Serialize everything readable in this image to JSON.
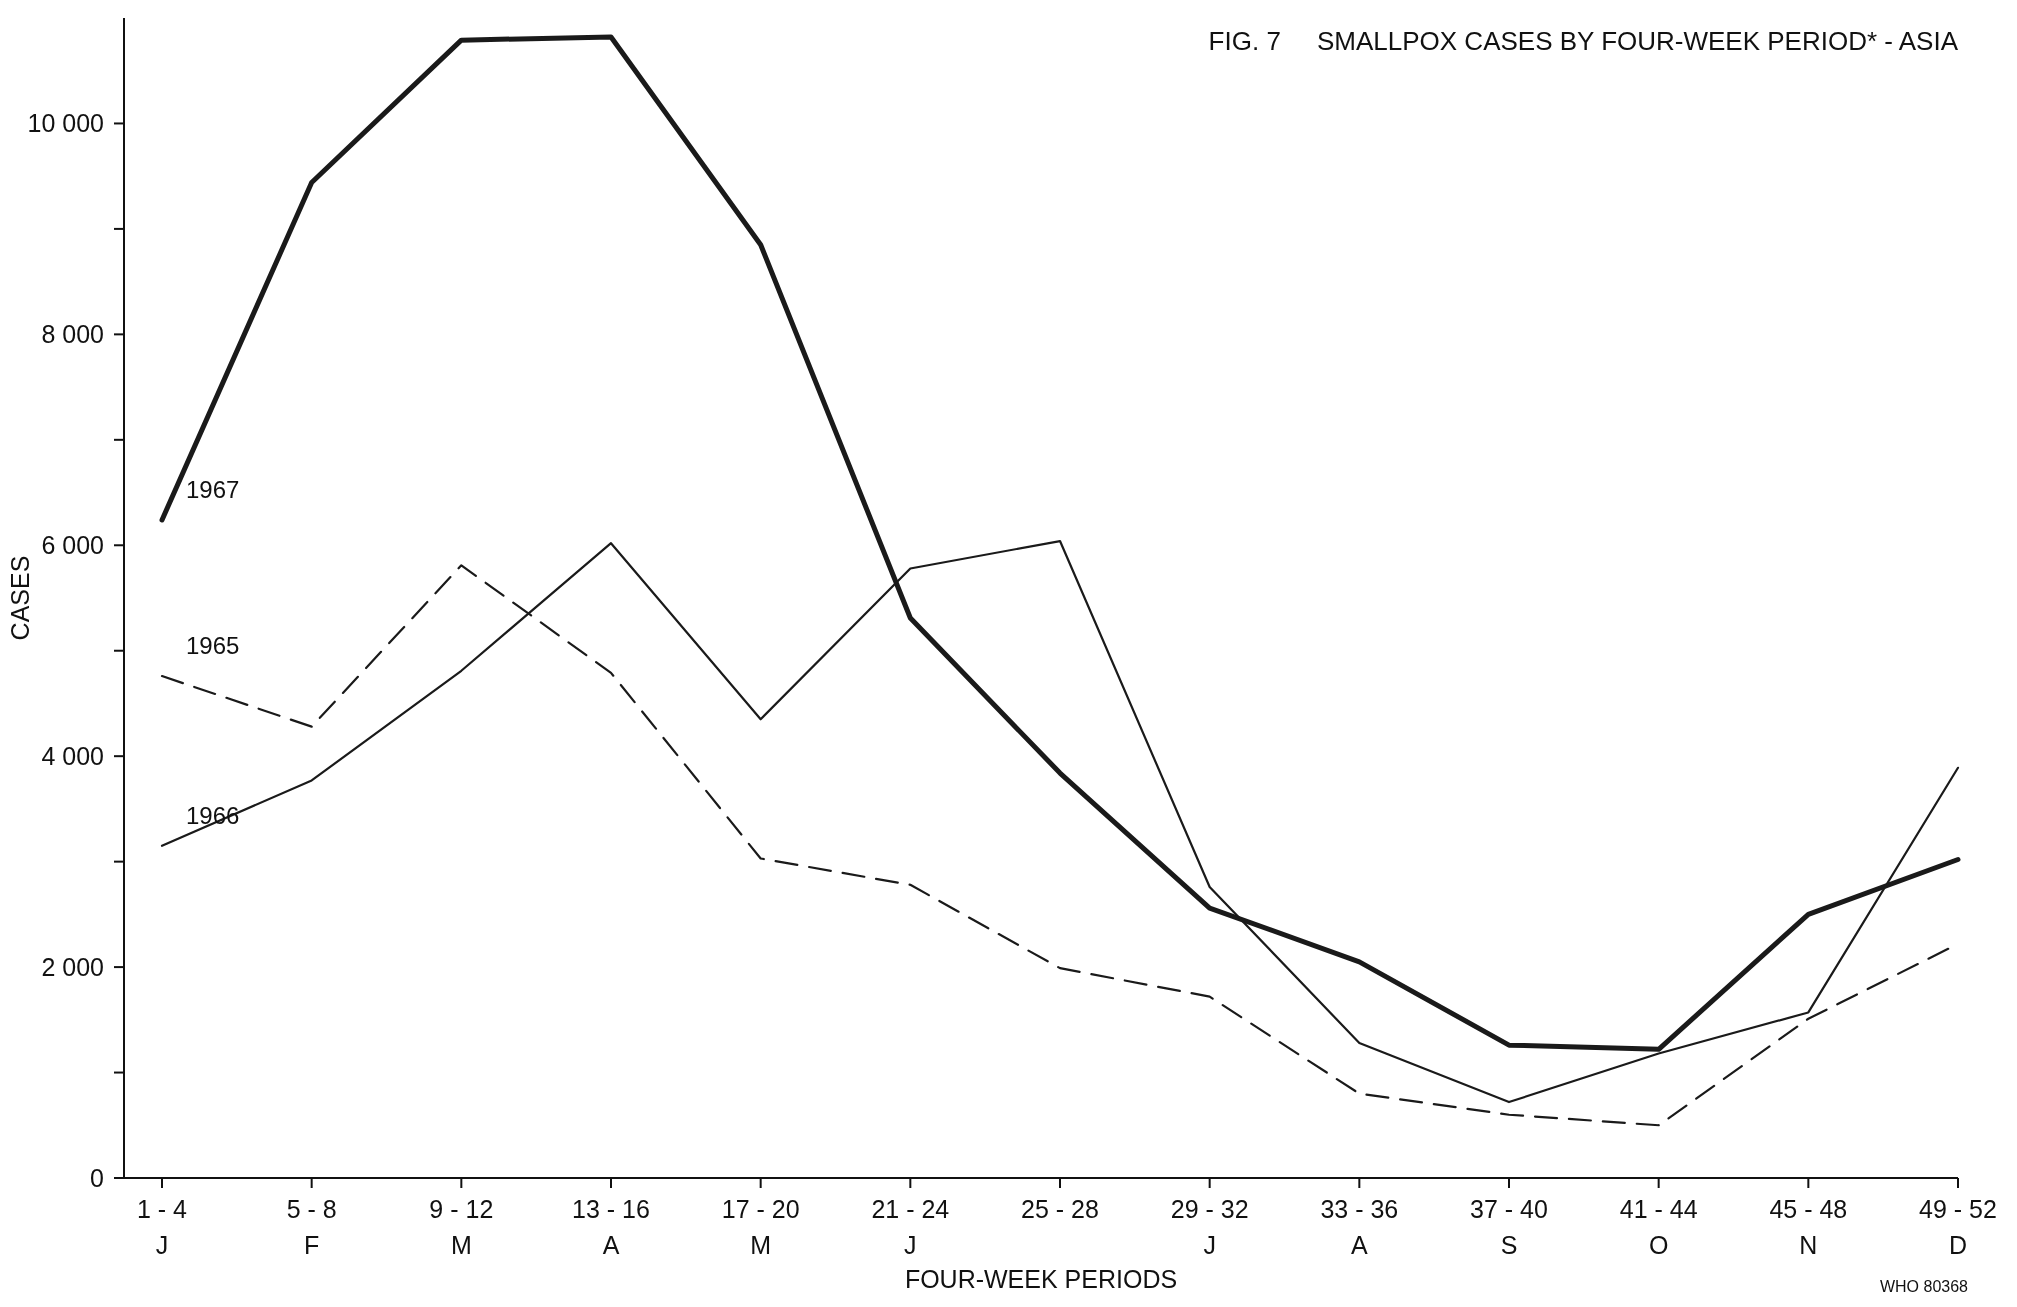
{
  "chart_data": {
    "type": "line",
    "title": "FIG. 7     SMALLPOX CASES BY FOUR-WEEK PERIOD* - ASIA",
    "xlabel": "FOUR-WEEK PERIODS",
    "ylabel": "CASES",
    "annotations": [
      "WHO 80368"
    ],
    "categories": [
      "1 - 4\nJ",
      "5 - 8\nF",
      "9 - 12\nM",
      "13 - 16\nA",
      "17 - 20\nM",
      "21 - 24\nJ",
      "25 - 28",
      "29 - 32\nJ",
      "33 - 36\nA",
      "37 - 40\nS",
      "41 - 44\nO",
      "45 - 48\nN",
      "49 - 52\nD"
    ],
    "series": [
      {
        "name": "1967",
        "color": "#1a1a1a",
        "line_style": "solid",
        "values": [
          6240,
          9440,
          10790,
          10820,
          8850,
          5310,
          3840,
          2560,
          2050,
          1260,
          1220,
          2500,
          3020
        ]
      },
      {
        "name": "1965",
        "color": "#1a1a1a",
        "line_style": "dashed",
        "values": [
          4760,
          4280,
          5810,
          4790,
          3030,
          2780,
          1990,
          1720,
          800,
          600,
          500,
          1510,
          2220
        ]
      },
      {
        "name": "1966",
        "color": "#1a1a1a",
        "line_style": "solid",
        "values": [
          3150,
          3770,
          4810,
          6020,
          4350,
          5780,
          6040,
          2760,
          1280,
          720,
          1180,
          1570,
          3890
        ]
      }
    ],
    "ylim": [
      0,
      11000
    ],
    "yticks": [
      0,
      {
        "value": 1000,
        "label": null
      },
      {
        "value": 2000,
        "label": "2 000"
      },
      {
        "value": 3000,
        "label": null
      },
      {
        "value": 4000,
        "label": "4 000"
      },
      {
        "value": 5000,
        "label": null
      },
      {
        "value": 6000,
        "label": "6 000"
      },
      {
        "value": 7000,
        "label": null
      },
      {
        "value": 8000,
        "label": "8 000"
      },
      {
        "value": 9000,
        "label": null
      },
      {
        "value": 10000,
        "label": "10 000"
      }
    ],
    "grid": false
  }
}
